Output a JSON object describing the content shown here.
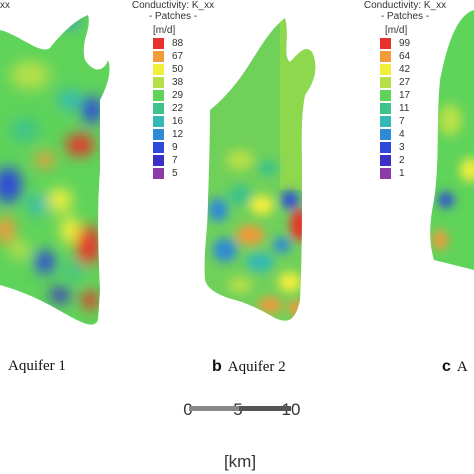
{
  "legends": [
    {
      "title": "Conductivity: K_xx",
      "subtitle": "- Patches -",
      "unit": "[m/d]",
      "entries": [
        {
          "value": "88",
          "color": "#e8322c"
        },
        {
          "value": "67",
          "color": "#f39a3a"
        },
        {
          "value": "50",
          "color": "#f2ee3c"
        },
        {
          "value": "38",
          "color": "#b6e04a"
        },
        {
          "value": "29",
          "color": "#5fd35a"
        },
        {
          "value": "22",
          "color": "#3ec38a"
        },
        {
          "value": "16",
          "color": "#35b9b6"
        },
        {
          "value": "12",
          "color": "#2f8ad6"
        },
        {
          "value": "9",
          "color": "#2d49d8"
        },
        {
          "value": "7",
          "color": "#3b2fc6"
        },
        {
          "value": "5",
          "color": "#8c3aa8"
        }
      ]
    },
    {
      "title": "Conductivity: K_xx",
      "subtitle": "- Patches -",
      "unit": "[m/d]",
      "entries": [
        {
          "value": "99",
          "color": "#e8322c"
        },
        {
          "value": "64",
          "color": "#f39a3a"
        },
        {
          "value": "42",
          "color": "#f2ee3c"
        },
        {
          "value": "27",
          "color": "#b6e04a"
        },
        {
          "value": "17",
          "color": "#5fd35a"
        },
        {
          "value": "11",
          "color": "#3ec38a"
        },
        {
          "value": "7",
          "color": "#35b9b6"
        },
        {
          "value": "4",
          "color": "#2f8ad6"
        },
        {
          "value": "3",
          "color": "#2d49d8"
        },
        {
          "value": "2",
          "color": "#3b2fc6"
        },
        {
          "value": "1",
          "color": "#8c3aa8"
        }
      ]
    }
  ],
  "legend_fragment": "xx",
  "panels": [
    {
      "letter": "",
      "text": "Aquifer 1"
    },
    {
      "letter": "b",
      "text": "Aquifer 2"
    },
    {
      "letter": "c",
      "text": "A"
    }
  ],
  "scalebar": {
    "ticks": [
      "0",
      "5",
      "10"
    ],
    "unit": "[km]"
  }
}
